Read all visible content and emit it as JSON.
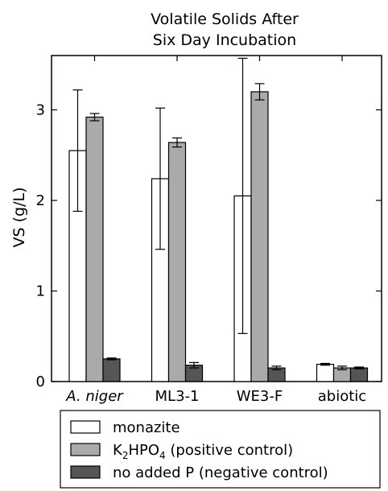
{
  "chart_data": {
    "type": "bar",
    "title_lines": [
      "Volatile Solids After",
      "Six Day Incubation"
    ],
    "ylabel": "VS (g/L)",
    "xlabel": "",
    "ylim": [
      0,
      3.6
    ],
    "yticks": [
      "0",
      "1",
      "2",
      "3"
    ],
    "categories": [
      "A. niger",
      "ML3-1",
      "WE3-F",
      "abiotic"
    ],
    "categories_italic": [
      true,
      false,
      false,
      false
    ],
    "grid": false,
    "legend_position": "bottom",
    "series": [
      {
        "name": "monazite",
        "color": "#ffffff",
        "values": [
          2.55,
          2.24,
          2.05,
          0.19
        ],
        "errors": [
          0.67,
          0.78,
          1.52,
          0.01
        ]
      },
      {
        "name": "K2HPO4 (positive control)",
        "name_parts": {
          "pre": "K",
          "sub1": "2",
          "mid": "HPO",
          "sub2": "4",
          "post": " (positive control)"
        },
        "color": "#aaaaaa",
        "values": [
          2.92,
          2.64,
          3.2,
          0.15
        ],
        "errors": [
          0.04,
          0.05,
          0.09,
          0.02
        ]
      },
      {
        "name": "no added P (negative control)",
        "color": "#555555",
        "values": [
          0.25,
          0.18,
          0.15,
          0.15
        ],
        "errors": [
          0.01,
          0.03,
          0.02,
          0.01
        ]
      }
    ]
  }
}
